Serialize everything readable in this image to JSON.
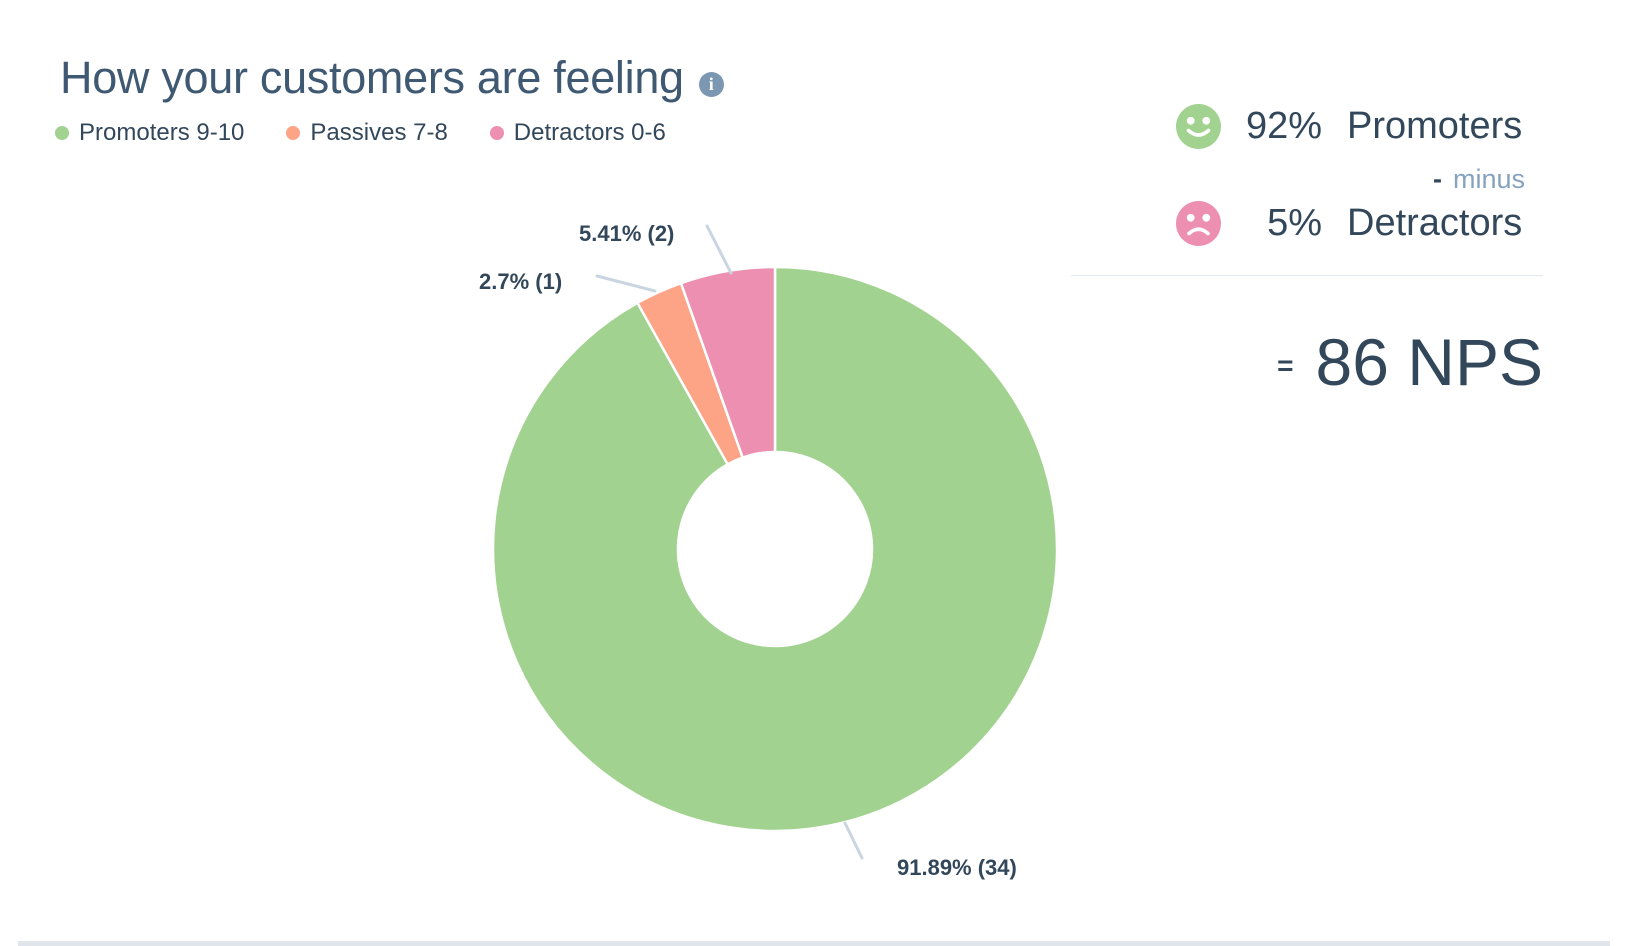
{
  "header": {
    "title": "How your customers are feeling"
  },
  "legend": {
    "items": [
      {
        "label": "Promoters 9-10",
        "color": "#a2d28f"
      },
      {
        "label": "Passives 7-8",
        "color": "#fda487"
      },
      {
        "label": "Detractors 0-6",
        "color": "#ed8fb0"
      }
    ]
  },
  "chart_data": {
    "type": "pie",
    "donut": true,
    "title": "How your customers are feeling",
    "start_angle_deg": 0,
    "direction": "clockwise",
    "legend_position": "top-left",
    "slices": [
      {
        "name": "Promoters 9-10",
        "percent": 91.89,
        "count": 34,
        "label": "91.89% (34)",
        "color": "#a2d28f"
      },
      {
        "name": "Passives 7-8",
        "percent": 2.7,
        "count": 1,
        "label": "2.7% (1)",
        "color": "#fda487"
      },
      {
        "name": "Detractors 0-6",
        "percent": 5.41,
        "count": 2,
        "label": "5.41% (2)",
        "color": "#ed8fb0"
      }
    ]
  },
  "nps": {
    "promoters_value": "92%",
    "promoters_label": "Promoters",
    "operator_symbol": "-",
    "operator_word": "minus",
    "detractors_value": "5%",
    "detractors_label": "Detractors",
    "equals_symbol": "=",
    "result": "86 NPS"
  },
  "colors": {
    "promoters": "#a2d28f",
    "passives": "#fda487",
    "detractors": "#ed8fb0",
    "text_dark": "#33475b",
    "text_muted": "#85a2bf",
    "leader_line": "#c9d5e0",
    "divider": "#e3e9ee",
    "info_icon": "#7c97b2"
  }
}
